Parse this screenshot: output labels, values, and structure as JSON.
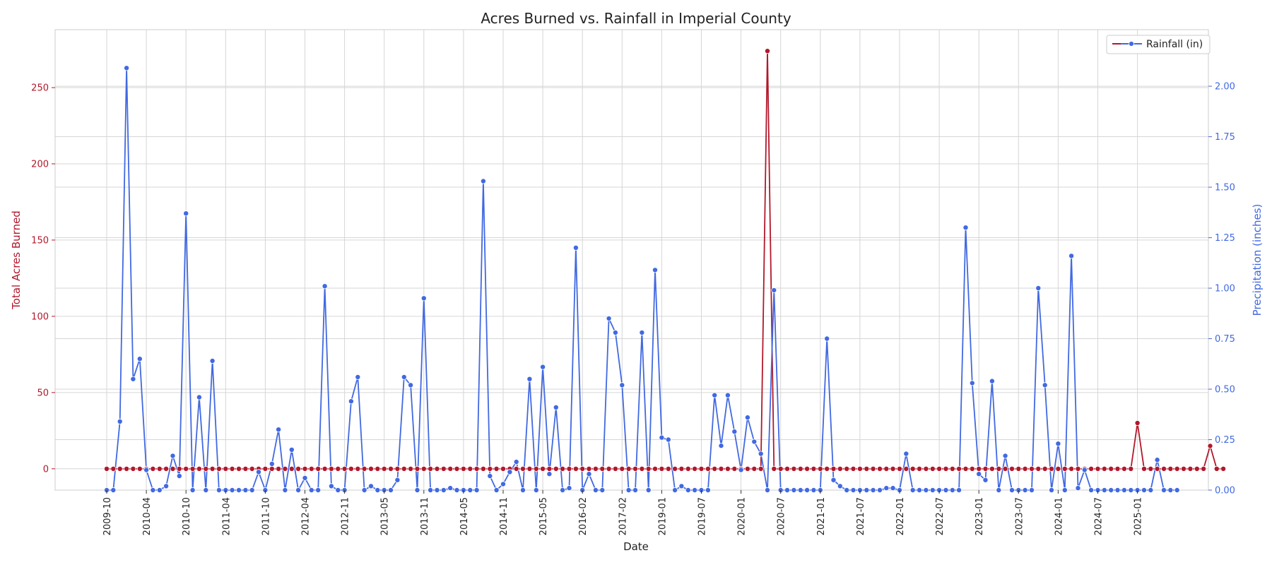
{
  "chart_data": {
    "type": "line",
    "title": "Acres Burned vs. Rainfall in Imperial County",
    "xlabel": "Date",
    "ylabel_left": "Total Acres Burned",
    "ylabel_right": "Precipitation (inches)",
    "ylim_left": [
      -14,
      288
    ],
    "ylim_right": [
      0,
      2.28
    ],
    "yticks_left": [
      0,
      50,
      100,
      150,
      200,
      250
    ],
    "yticks_right": [
      "0.00",
      "0.25",
      "0.50",
      "0.75",
      "1.00",
      "1.25",
      "1.50",
      "1.75",
      "2.00"
    ],
    "x_tick_labels": [
      "2009-10",
      "2010-04",
      "2010-10",
      "2011-04",
      "2011-10",
      "2012-04",
      "2012-11",
      "2013-05",
      "2013-11",
      "2014-05",
      "2014-11",
      "2015-05",
      "2016-02",
      "2017-02",
      "2019-01",
      "2019-07",
      "2020-01",
      "2020-07",
      "2021-01",
      "2021-07",
      "2022-01",
      "2022-07",
      "2023-01",
      "2023-07",
      "2024-01",
      "2024-07",
      "2025-01"
    ],
    "x_tick_index": [
      0,
      6,
      12,
      18,
      24,
      30,
      36,
      42,
      48,
      54,
      60,
      66,
      72,
      78,
      84,
      90,
      96,
      102,
      108,
      114,
      120,
      126,
      132,
      138,
      144,
      150,
      156
    ],
    "grid": true,
    "legend_position": "top-right",
    "colors": {
      "acres": "#b2182b",
      "rainfall": "#4169e1"
    },
    "series": [
      {
        "name": "",
        "axis": "left",
        "color": "#b2182b",
        "values": [
          0,
          0,
          0,
          0,
          0,
          0,
          0,
          0,
          0,
          0,
          0,
          0,
          0,
          0,
          0,
          0,
          0,
          0,
          0,
          0,
          0,
          0,
          0,
          0,
          0,
          0,
          0,
          0,
          0,
          0,
          0,
          0,
          0,
          0,
          0,
          0,
          0,
          0,
          0,
          0,
          0,
          0,
          0,
          0,
          0,
          0,
          0,
          0,
          0,
          0,
          0,
          0,
          0,
          0,
          0,
          0,
          0,
          0,
          0,
          0,
          0,
          0,
          0,
          0,
          0,
          0,
          0,
          0,
          0,
          0,
          0,
          0,
          0,
          0,
          0,
          0,
          0,
          0,
          0,
          0,
          0,
          0,
          0,
          0,
          0,
          0,
          0,
          0,
          0,
          0,
          0,
          0,
          0,
          0,
          0,
          0,
          0,
          0,
          0,
          0,
          274,
          0,
          0,
          0,
          0,
          0,
          0,
          0,
          0,
          0,
          0,
          0,
          0,
          0,
          0,
          0,
          0,
          0,
          0,
          0,
          0,
          0,
          0,
          0,
          0,
          0,
          0,
          0,
          0,
          0,
          0,
          0,
          0,
          0,
          0,
          0,
          0,
          0,
          0,
          0,
          0,
          0,
          0,
          0,
          0,
          0,
          0,
          0,
          0,
          0,
          0,
          0,
          0,
          0,
          0,
          0,
          30,
          0,
          0,
          0,
          0,
          0,
          0,
          0,
          0,
          0,
          0,
          15,
          0,
          0
        ]
      },
      {
        "name": "Rainfall (in)",
        "axis": "right",
        "color": "#4169e1",
        "values": [
          0,
          0,
          0.34,
          2.09,
          0.55,
          0.65,
          0.1,
          0,
          0,
          0.02,
          0.17,
          0.07,
          1.37,
          0,
          0.46,
          0,
          0.64,
          0,
          0,
          0,
          0,
          0,
          0,
          0.09,
          0,
          0.13,
          0.3,
          0,
          0.2,
          0,
          0.06,
          0,
          0,
          1.01,
          0.02,
          0,
          0,
          0.44,
          0.56,
          0,
          0.02,
          0,
          0,
          0,
          0.05,
          0.56,
          0.52,
          0,
          0.95,
          0,
          0,
          0,
          0.01,
          0,
          0,
          0,
          0,
          1.53,
          0.07,
          0,
          0.03,
          0.09,
          0.14,
          0,
          0.55,
          0,
          0.61,
          0.08,
          0.41,
          0,
          0.01,
          1.2,
          0,
          0.08,
          0,
          0,
          0.85,
          0.78,
          0.52,
          0,
          0,
          0.78,
          0,
          1.09,
          0.26,
          0.25,
          0,
          0.02,
          0,
          0,
          0,
          0,
          0.47,
          0.22,
          0.47,
          0.29,
          0.1,
          0.36,
          0.24,
          0.18,
          0,
          0.99,
          0,
          0,
          0,
          0,
          0,
          0,
          0,
          0.75,
          0.05,
          0.02,
          0,
          0,
          0,
          0,
          0,
          0,
          0.01,
          0.01,
          0,
          0.18,
          0,
          0,
          0,
          0,
          0,
          0,
          0,
          0,
          1.3,
          0.53,
          0.08,
          0.05,
          0.54,
          0,
          0.17,
          0,
          0,
          0,
          0,
          1.0,
          0.52,
          0,
          0.23,
          0,
          1.16,
          0.01,
          0.1,
          0,
          0,
          0,
          0,
          0,
          0,
          0,
          0,
          0,
          0,
          0.15,
          0,
          0,
          0
        ]
      }
    ]
  }
}
